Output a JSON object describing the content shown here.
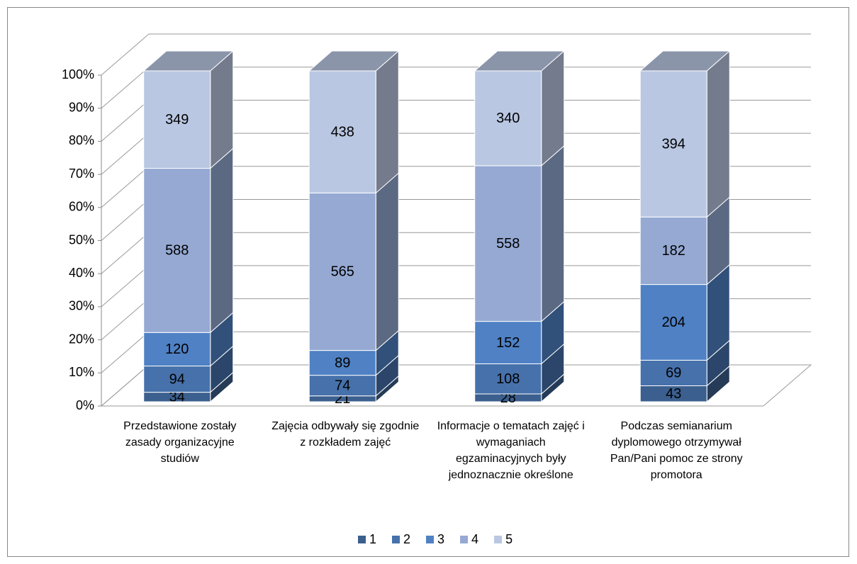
{
  "chart_data": {
    "type": "bar",
    "stacking": "percent",
    "categories": [
      "Przedstawione zostały zasady organizacyjne studiów",
      "Zajęcia odbywały się zgodnie z rozkładem zajęć",
      "Informacje o tematach zajęć i wymaganiach egzaminacyjnych były jednoznacznie określone",
      "Podczas semianarium dyplomowego otrzymywał Pan/Pani pomoc ze strony promotora"
    ],
    "series": [
      {
        "name": "1",
        "color": "#3b5f8e",
        "values": [
          34,
          21,
          28,
          43
        ]
      },
      {
        "name": "2",
        "color": "#4671ab",
        "values": [
          94,
          74,
          108,
          69
        ]
      },
      {
        "name": "3",
        "color": "#4f81c4",
        "values": [
          120,
          89,
          152,
          204
        ]
      },
      {
        "name": "4",
        "color": "#95a9d3",
        "values": [
          588,
          565,
          558,
          182
        ]
      },
      {
        "name": "5",
        "color": "#b9c7e2",
        "values": [
          349,
          438,
          340,
          394
        ]
      }
    ],
    "ylim": [
      0,
      100
    ],
    "yticks": [
      {
        "value": 0,
        "label": "0%"
      },
      {
        "value": 10,
        "label": "10%"
      },
      {
        "value": 20,
        "label": "20%"
      },
      {
        "value": 30,
        "label": "30%"
      },
      {
        "value": 40,
        "label": "40%"
      },
      {
        "value": 50,
        "label": "50%"
      },
      {
        "value": 60,
        "label": "60%"
      },
      {
        "value": 70,
        "label": "70%"
      },
      {
        "value": 80,
        "label": "80%"
      },
      {
        "value": 90,
        "label": "90%"
      },
      {
        "value": 100,
        "label": "100%"
      }
    ],
    "grid": true,
    "legend": "bottom"
  }
}
